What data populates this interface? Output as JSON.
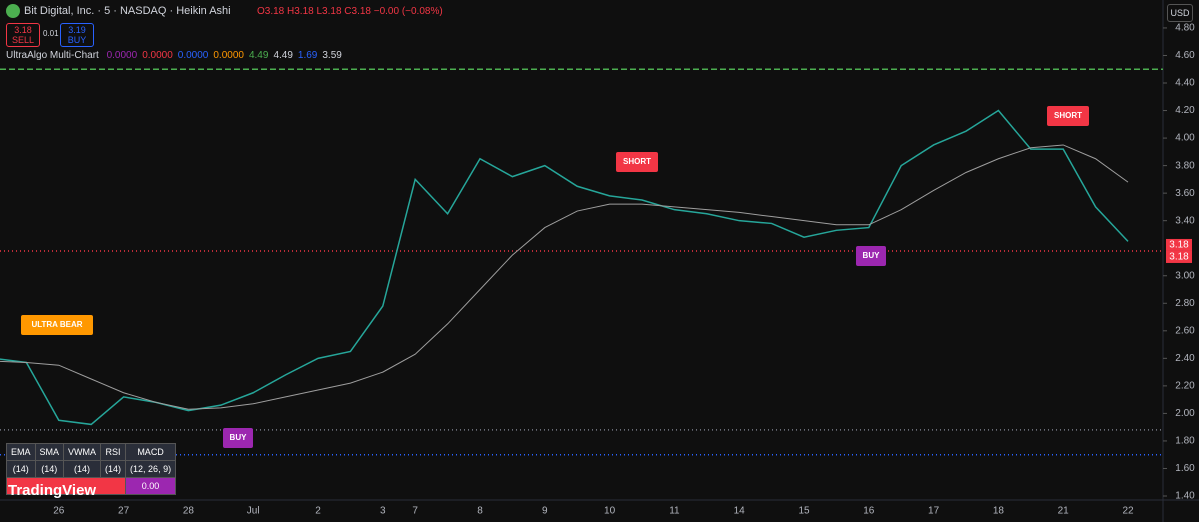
{
  "header": {
    "symbol": "Bit Digital, Inc. · 5 · NASDAQ · Heikin Ashi",
    "ohlc": "O3.18 H3.18 L3.18 C3.18 −0.00 (−0.08%)",
    "sell_price": "3.18",
    "sell": "SELL",
    "spread": "0.01",
    "buy_price": "3.19",
    "buy": "BUY",
    "currency": "USD",
    "indicator": "UltraAlgo Multi-Chart",
    "indicator_values": [
      {
        "text": "0.0000",
        "color": "#9c27b0"
      },
      {
        "text": "0.0000",
        "color": "#f23645"
      },
      {
        "text": "0.0000",
        "color": "#2962ff"
      },
      {
        "text": "0.0000",
        "color": "#ff9800"
      },
      {
        "text": "4.49",
        "color": "#4caf50"
      },
      {
        "text": "4.49",
        "color": "#d1d4dc"
      },
      {
        "text": "1.69",
        "color": "#2962ff"
      },
      {
        "text": "3.59",
        "color": "#d1d4dc"
      }
    ]
  },
  "table": {
    "header": [
      "EMA",
      "SMA",
      "VWMA",
      "RSI",
      "MACD"
    ],
    "params": [
      "(14)",
      "(14)",
      "(14)",
      "(14)",
      "(12, 26, 9)"
    ],
    "last": "0.00"
  },
  "logo": "TradingView",
  "chart_data": {
    "type": "line",
    "categories": [
      null,
      null,
      "26",
      null,
      "27",
      null,
      "28",
      null,
      "Jul",
      null,
      "2",
      null,
      "3",
      "7",
      null,
      "8",
      null,
      "9",
      null,
      "10",
      null,
      "11",
      null,
      "14",
      null,
      "15",
      null,
      "16",
      null,
      "17",
      null,
      "18",
      null,
      "21",
      null,
      "22"
    ],
    "series": [
      {
        "name": "Close",
        "color": "#26a69a",
        "values": [
          2.4,
          2.37,
          1.95,
          1.92,
          2.12,
          2.08,
          2.02,
          2.06,
          2.15,
          2.28,
          2.4,
          2.45,
          2.78,
          3.7,
          3.45,
          3.85,
          3.72,
          3.8,
          3.65,
          3.58,
          3.55,
          3.48,
          3.45,
          3.4,
          3.38,
          3.28,
          3.33,
          3.35,
          3.8,
          3.95,
          4.05,
          4.2,
          3.92,
          3.92,
          3.5,
          3.25
        ]
      },
      {
        "name": "MA",
        "color": "#9e9e9e",
        "values": [
          2.38,
          2.37,
          2.35,
          2.25,
          2.15,
          2.08,
          2.03,
          2.04,
          2.07,
          2.12,
          2.17,
          2.22,
          2.3,
          2.43,
          2.65,
          2.9,
          3.15,
          3.35,
          3.47,
          3.52,
          3.52,
          3.5,
          3.48,
          3.46,
          3.43,
          3.4,
          3.37,
          3.37,
          3.48,
          3.62,
          3.75,
          3.85,
          3.93,
          3.95,
          3.85,
          3.68
        ]
      }
    ],
    "ylim": [
      1.371,
      5.003
    ],
    "yticks": [
      {
        "value": 1.4,
        "label": "1.40"
      },
      {
        "value": 1.6,
        "label": "1.60"
      },
      {
        "value": 1.8,
        "label": "1.80"
      },
      {
        "value": 2.0,
        "label": "2.00"
      },
      {
        "value": 2.2,
        "label": "2.20"
      },
      {
        "value": 2.4,
        "label": "2.40"
      },
      {
        "value": 2.6,
        "label": "2.60"
      },
      {
        "value": 2.8,
        "label": "2.80"
      },
      {
        "value": 3.0,
        "label": "3.00"
      },
      {
        "value": 3.4,
        "label": "3.40"
      },
      {
        "value": 3.6,
        "label": "3.60"
      },
      {
        "value": 3.8,
        "label": "3.80"
      },
      {
        "value": 4.0,
        "label": "4.00"
      },
      {
        "value": 4.2,
        "label": "4.20"
      },
      {
        "value": 4.4,
        "label": "4.40"
      },
      {
        "value": 4.6,
        "label": "4.60"
      },
      {
        "value": 4.8,
        "label": "4.80"
      }
    ],
    "hlines": [
      {
        "value": 4.5,
        "color": "#4caf50"
      },
      {
        "value": 3.18,
        "color": "#f23645"
      },
      {
        "value": 1.88,
        "color": "#787b86"
      },
      {
        "value": 1.7,
        "color": "#2962ff"
      }
    ],
    "price_labels": [
      {
        "value": 3.18,
        "label": "3.18"
      },
      {
        "value": 3.18,
        "label": "3.18"
      }
    ],
    "annotations": [
      {
        "text": "ULTRA BEAR",
        "color": "#ff9800"
      },
      {
        "text": "BUY",
        "color": "#9c27b0"
      },
      {
        "text": "SHORT",
        "color": "#f23645"
      },
      {
        "text": "BUY",
        "color": "#9c27b0"
      },
      {
        "text": "SHORT",
        "color": "#f23645"
      }
    ]
  }
}
